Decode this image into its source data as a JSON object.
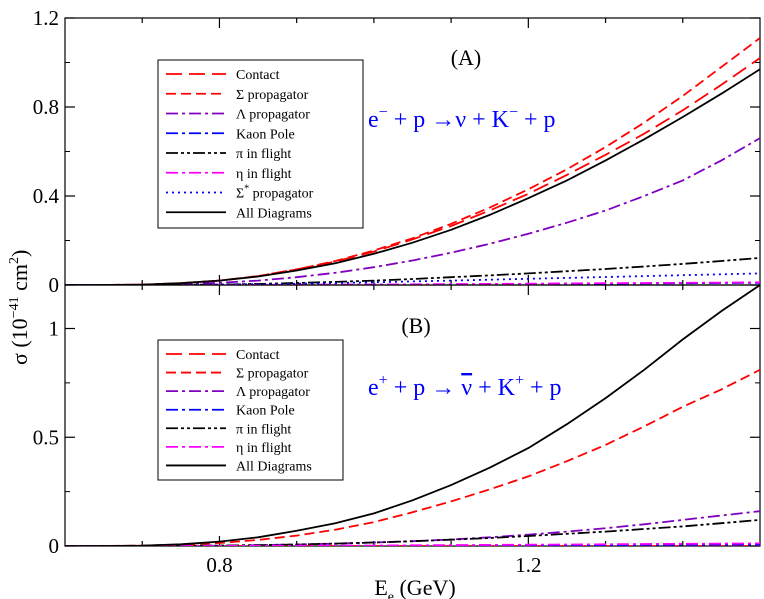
{
  "chart_data": {
    "type": "line",
    "x_label": {
      "main": "E",
      "sub": "e",
      "rest": " (GeV)"
    },
    "y_label": {
      "main": "σ (10",
      "sup": "−41",
      "mid": " cm",
      "sup2": "2",
      "end": ")"
    },
    "x_ticks": [
      "0.8",
      "1.2"
    ],
    "x_tick_values": [
      0.8,
      1.2
    ],
    "xlim": [
      0.6,
      1.5
    ],
    "x": [
      0.6,
      0.65,
      0.7,
      0.75,
      0.8,
      0.85,
      0.9,
      0.95,
      1.0,
      1.05,
      1.1,
      1.15,
      1.2,
      1.25,
      1.3,
      1.35,
      1.4,
      1.45,
      1.5
    ],
    "panels": [
      {
        "label": "(A)",
        "reaction": {
          "lhs": "e",
          "lhs_sup": "−",
          "mid": " + p  →ν  + K",
          "k_sup": "−",
          "rhs": " + p"
        },
        "reaction_color": "#0000ff",
        "ylim": [
          0,
          1.2
        ],
        "y_ticks": [
          "0",
          "0.4",
          "0.8",
          "1.2"
        ],
        "y_tick_values": [
          0,
          0.4,
          0.8,
          1.2
        ],
        "series": [
          {
            "name": "Contact",
            "color": "#ff0000",
            "dash": "long-dash",
            "values": [
              0,
              0,
              0.002,
              0.008,
              0.02,
              0.04,
              0.07,
              0.105,
              0.15,
              0.205,
              0.265,
              0.335,
              0.41,
              0.495,
              0.585,
              0.68,
              0.785,
              0.9,
              1.02
            ]
          },
          {
            "name": "Σ  propagator",
            "sup": "",
            "color": "#ff0000",
            "dash": "dash",
            "values": [
              0,
              0,
              0.002,
              0.008,
              0.02,
              0.04,
              0.07,
              0.108,
              0.155,
              0.21,
              0.275,
              0.348,
              0.43,
              0.52,
              0.62,
              0.73,
              0.85,
              0.98,
              1.11
            ]
          },
          {
            "name": "Λ propagator",
            "color": "#8000c0",
            "dash": "dash-dot",
            "values": [
              0,
              0,
              0.001,
              0.004,
              0.01,
              0.02,
              0.035,
              0.055,
              0.08,
              0.11,
              0.145,
              0.185,
              0.23,
              0.28,
              0.335,
              0.4,
              0.47,
              0.56,
              0.66
            ]
          },
          {
            "name": "Kaon Pole",
            "color": "#0000ff",
            "dash": "dash-dot",
            "values": [
              0,
              0,
              0,
              0,
              0,
              0,
              0.001,
              0.001,
              0.002,
              0.002,
              0.003,
              0.003,
              0.004,
              0.005,
              0.006,
              0.007,
              0.008,
              0.009,
              0.01
            ]
          },
          {
            "name": "π  in flight",
            "color": "#000000",
            "dash": "dash-dot-dot",
            "values": [
              0,
              0,
              0,
              0.001,
              0.002,
              0.005,
              0.009,
              0.014,
              0.02,
              0.027,
              0.035,
              0.043,
              0.052,
              0.062,
              0.072,
              0.083,
              0.095,
              0.108,
              0.122
            ]
          },
          {
            "name": "η  in flight",
            "color": "#ff00ff",
            "dash": "dash-dot",
            "values": [
              0,
              0,
              0,
              0,
              0,
              0.001,
              0.001,
              0.002,
              0.002,
              0.003,
              0.004,
              0.005,
              0.006,
              0.007,
              0.008,
              0.009,
              0.01,
              0.011,
              0.012
            ]
          },
          {
            "name": "Σ",
            "sup": "*",
            "name_tail": " propagator",
            "color": "#0000ff",
            "dash": "dot",
            "values": [
              0,
              0,
              0,
              0.001,
              0.002,
              0.004,
              0.006,
              0.009,
              0.012,
              0.016,
              0.02,
              0.024,
              0.028,
              0.032,
              0.036,
              0.04,
              0.044,
              0.048,
              0.052
            ]
          },
          {
            "name": "All Diagrams",
            "color": "#000000",
            "dash": "solid",
            "values": [
              0,
              0,
              0.002,
              0.008,
              0.02,
              0.038,
              0.065,
              0.098,
              0.14,
              0.19,
              0.248,
              0.315,
              0.39,
              0.47,
              0.56,
              0.655,
              0.755,
              0.86,
              0.97
            ]
          }
        ]
      },
      {
        "label": "(B)",
        "reaction": {
          "lhs": "e",
          "lhs_sup": "+",
          "mid": " + p  → ",
          "nu": "ν",
          "mid2": "  + K",
          "k_sup": "+",
          "rhs": " + p"
        },
        "reaction_color": "#0000ff",
        "ylim": [
          0,
          1.2
        ],
        "y_ticks": [
          "0",
          "0.5",
          "1"
        ],
        "y_tick_values": [
          0,
          0.5,
          1
        ],
        "series": [
          {
            "name": "Contact",
            "color": "#ff0000",
            "dash": "long-dash",
            "values": [
              0,
              0,
              0,
              0,
              0,
              0,
              0,
              0,
              0,
              0,
              0,
              0,
              0,
              0,
              0,
              0,
              0,
              0,
              0
            ]
          },
          {
            "name": "Σ  propagator",
            "color": "#ff0000",
            "dash": "dash",
            "values": [
              0,
              0,
              0.002,
              0.006,
              0.014,
              0.028,
              0.048,
              0.075,
              0.11,
              0.155,
              0.205,
              0.26,
              0.32,
              0.39,
              0.465,
              0.55,
              0.64,
              0.72,
              0.81
            ]
          },
          {
            "name": "Λ  propagator",
            "color": "#8000c0",
            "dash": "dash-dot",
            "values": [
              0,
              0,
              0,
              0.001,
              0.002,
              0.004,
              0.007,
              0.011,
              0.016,
              0.022,
              0.03,
              0.04,
              0.052,
              0.066,
              0.082,
              0.1,
              0.12,
              0.14,
              0.16
            ]
          },
          {
            "name": "Kaon Pole",
            "color": "#0000ff",
            "dash": "dash-dot",
            "values": [
              0,
              0,
              0,
              0,
              0,
              0,
              0,
              0.001,
              0.001,
              0.002,
              0.002,
              0.003,
              0.003,
              0.004,
              0.004,
              0.005,
              0.005,
              0.006,
              0.006
            ]
          },
          {
            "name": "π in flight",
            "color": "#000000",
            "dash": "dash-dot-dot",
            "values": [
              0,
              0,
              0,
              0.001,
              0.002,
              0.004,
              0.007,
              0.011,
              0.016,
              0.022,
              0.029,
              0.037,
              0.046,
              0.056,
              0.066,
              0.078,
              0.09,
              0.105,
              0.12
            ]
          },
          {
            "name": "η in flight",
            "color": "#ff00ff",
            "dash": "dash-dot",
            "values": [
              0,
              0,
              0,
              0,
              0,
              0.001,
              0.001,
              0.002,
              0.002,
              0.003,
              0.004,
              0.005,
              0.006,
              0.007,
              0.008,
              0.009,
              0.01,
              0.011,
              0.012
            ]
          },
          {
            "name": "All Diagrams",
            "color": "#000000",
            "dash": "solid",
            "values": [
              0,
              0,
              0.002,
              0.008,
              0.02,
              0.04,
              0.07,
              0.105,
              0.15,
              0.21,
              0.28,
              0.36,
              0.45,
              0.56,
              0.68,
              0.81,
              0.95,
              1.08,
              1.2
            ]
          }
        ]
      }
    ]
  }
}
